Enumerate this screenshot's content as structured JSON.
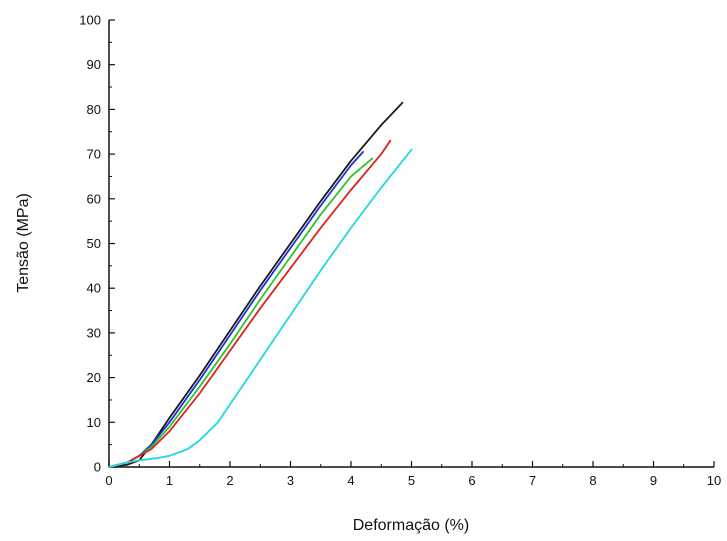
{
  "chart_data": {
    "type": "line",
    "title": "",
    "xlabel": "Deformação (%)",
    "ylabel": "Tensão (MPa)",
    "xlim": [
      0,
      10
    ],
    "ylim": [
      0,
      100
    ],
    "x_ticks": [
      "0",
      "1",
      "2",
      "3",
      "4",
      "5",
      "6",
      "7",
      "8",
      "9",
      "10"
    ],
    "y_ticks": [
      "0",
      "10",
      "20",
      "30",
      "40",
      "50",
      "60",
      "70",
      "80",
      "90",
      "100"
    ],
    "grid": false,
    "legend": "none",
    "series": [
      {
        "color": "#1a1a1a",
        "x": [
          0.0,
          0.3,
          0.5,
          0.7,
          1.0,
          1.5,
          2.0,
          2.5,
          3.0,
          3.5,
          4.0,
          4.5,
          4.85
        ],
        "y": [
          0.0,
          0.5,
          1.5,
          5.0,
          11.0,
          20.5,
          30.5,
          40.5,
          50.0,
          59.5,
          68.5,
          76.5,
          81.5
        ]
      },
      {
        "color": "#1f2fd6",
        "x": [
          0.0,
          0.3,
          0.5,
          0.7,
          1.0,
          1.5,
          2.0,
          2.5,
          3.0,
          3.5,
          4.0,
          4.2
        ],
        "y": [
          0.0,
          1.0,
          2.5,
          5.0,
          10.0,
          19.5,
          29.5,
          39.5,
          49.0,
          58.5,
          67.5,
          70.5
        ]
      },
      {
        "color": "#2bc42b",
        "x": [
          0.0,
          0.3,
          0.5,
          0.7,
          1.0,
          1.5,
          2.0,
          2.5,
          3.0,
          3.5,
          4.0,
          4.35
        ],
        "y": [
          0.0,
          1.0,
          2.5,
          4.5,
          9.0,
          18.0,
          27.5,
          37.5,
          47.0,
          56.5,
          65.0,
          69.0
        ]
      },
      {
        "color": "#e02020",
        "x": [
          0.0,
          0.3,
          0.5,
          0.7,
          1.0,
          1.5,
          2.0,
          2.5,
          3.0,
          3.5,
          4.0,
          4.5,
          4.65
        ],
        "y": [
          0.0,
          1.0,
          2.5,
          4.0,
          8.0,
          16.5,
          26.0,
          35.5,
          44.5,
          53.5,
          62.0,
          70.0,
          73.0
        ]
      },
      {
        "color": "#22d8e0",
        "x": [
          0.0,
          0.3,
          0.5,
          0.8,
          1.0,
          1.3,
          1.5,
          1.8,
          2.0,
          2.5,
          3.0,
          3.5,
          4.0,
          4.5,
          5.0
        ],
        "y": [
          0.0,
          1.0,
          1.5,
          2.0,
          2.5,
          4.0,
          6.0,
          10.0,
          14.0,
          24.0,
          34.0,
          44.0,
          53.5,
          62.5,
          71.0
        ]
      }
    ]
  }
}
